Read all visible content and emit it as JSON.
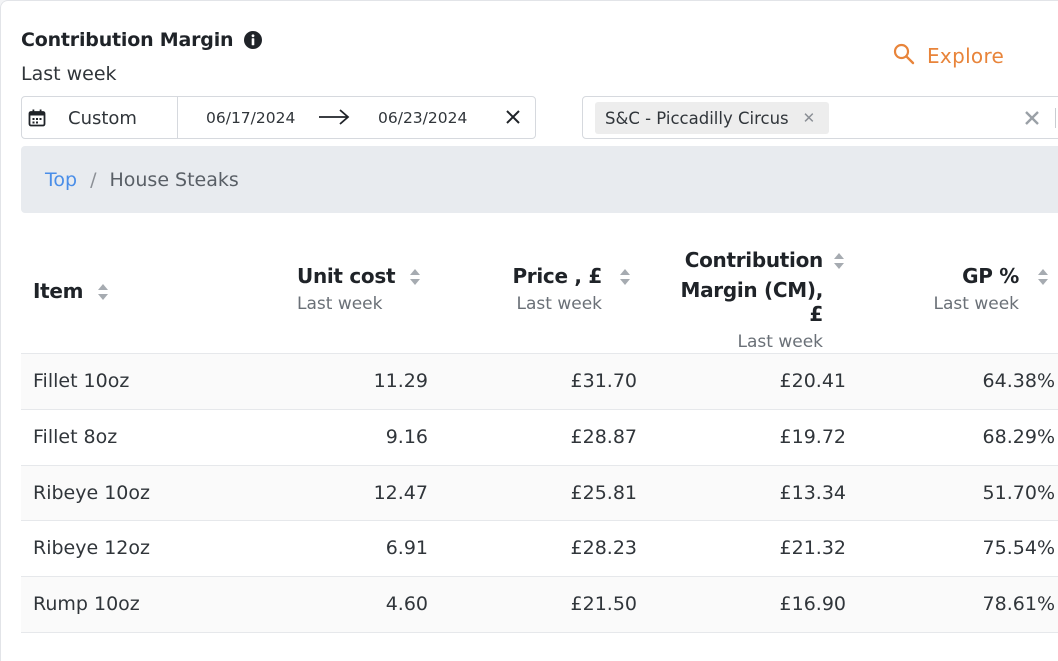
{
  "header": {
    "title": "Contribution Margin",
    "subtitle": "Last week",
    "explore_label": "Explore"
  },
  "date_filter": {
    "preset": "Custom",
    "start": "06/17/2024",
    "end": "06/23/2024"
  },
  "location_filter": {
    "chip": "S&C - Piccadilly Circus"
  },
  "breadcrumb": {
    "root": "Top",
    "separator": "/",
    "current": "House Steaks"
  },
  "table": {
    "columns": {
      "item": {
        "label": "Item"
      },
      "unit_cost": {
        "label": "Unit cost",
        "sub": "Last week"
      },
      "price": {
        "label": "Price , £",
        "sub": "Last week"
      },
      "cm": {
        "label_line1": "Contribution",
        "label_line2": "Margin (CM), £",
        "sub": "Last week"
      },
      "gp": {
        "label": "GP %",
        "sub": "Last week"
      }
    },
    "rows": [
      {
        "item": "Fillet 10oz",
        "unit_cost": "11.29",
        "price": "£31.70",
        "cm": "£20.41",
        "gp": "64.38%"
      },
      {
        "item": "Fillet 8oz",
        "unit_cost": "9.16",
        "price": "£28.87",
        "cm": "£19.72",
        "gp": "68.29%"
      },
      {
        "item": "Ribeye 10oz",
        "unit_cost": "12.47",
        "price": "£25.81",
        "cm": "£13.34",
        "gp": "51.70%"
      },
      {
        "item": "Ribeye 12oz",
        "unit_cost": "6.91",
        "price": "£28.23",
        "cm": "£21.32",
        "gp": "75.54%"
      },
      {
        "item": "Rump 10oz",
        "unit_cost": "4.60",
        "price": "£21.50",
        "cm": "£16.90",
        "gp": "78.61%"
      }
    ]
  },
  "icons": {
    "info": "info-icon",
    "search": "search-icon",
    "calendar": "calendar-icon",
    "arrow": "arrow-right-icon",
    "close": "close-icon",
    "sort": "sort-icon"
  },
  "colors": {
    "accent": "#e8843a",
    "link": "#4a8ee8",
    "breadcrumb_bg": "#e8ebef"
  }
}
